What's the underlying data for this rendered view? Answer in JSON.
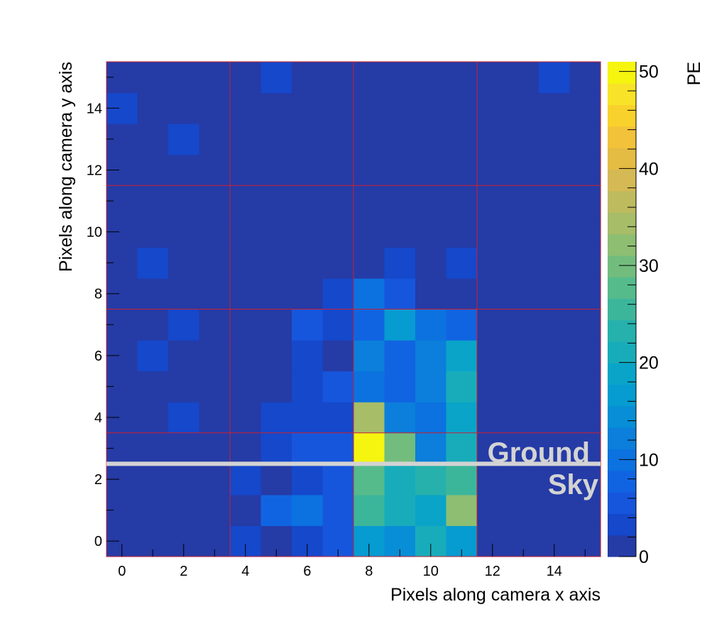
{
  "chart_data": {
    "type": "heatmap",
    "title": "",
    "xlabel": "Pixels along camera x axis",
    "ylabel": "Pixels along camera y axis",
    "colorbar_label": "PE",
    "xlim": [
      -0.5,
      15.5
    ],
    "ylim": [
      -0.5,
      15.5
    ],
    "zlim": [
      0,
      51
    ],
    "x_ticks": [
      0,
      2,
      4,
      6,
      8,
      10,
      12,
      14
    ],
    "y_ticks": [
      0,
      2,
      4,
      6,
      8,
      10,
      12,
      14
    ],
    "z_ticks": [
      0,
      10,
      20,
      30,
      40,
      50
    ],
    "module_grid_size": 4,
    "horizon_y": 2.5,
    "annotations": [
      "Ground",
      "Sky"
    ],
    "values": [
      [
        0,
        0,
        0,
        0,
        3,
        0,
        3,
        5,
        17,
        14,
        22,
        17,
        0,
        0,
        0,
        0
      ],
      [
        0,
        0,
        0,
        0,
        0,
        7,
        11,
        6,
        25,
        20,
        19,
        32,
        0,
        0,
        0,
        0
      ],
      [
        0,
        0,
        0,
        0,
        3,
        0,
        3,
        6,
        28,
        22,
        23,
        25,
        0,
        0,
        0,
        0
      ],
      [
        0,
        0,
        0,
        0,
        0,
        3,
        6,
        6,
        51,
        31,
        13,
        21,
        0,
        0,
        0,
        0
      ],
      [
        0,
        0,
        3,
        0,
        0,
        3,
        3,
        3,
        35,
        12,
        10,
        18,
        0,
        0,
        0,
        0
      ],
      [
        0,
        0,
        0,
        0,
        0,
        0,
        3,
        6,
        9,
        8,
        13,
        21,
        0,
        0,
        0,
        0
      ],
      [
        0,
        3,
        0,
        0,
        0,
        0,
        3,
        0,
        12,
        8,
        13,
        19,
        0,
        0,
        0,
        0
      ],
      [
        0,
        0,
        3,
        0,
        0,
        0,
        6,
        3,
        8,
        16,
        11,
        8,
        0,
        0,
        0,
        0
      ],
      [
        0,
        0,
        0,
        0,
        0,
        0,
        0,
        3,
        9,
        6,
        0,
        0,
        0,
        0,
        0,
        0
      ],
      [
        0,
        3,
        0,
        0,
        0,
        0,
        0,
        0,
        0,
        3,
        0,
        3,
        0,
        0,
        0,
        0
      ],
      [
        0,
        0,
        0,
        0,
        0,
        0,
        0,
        0,
        0,
        0,
        0,
        0,
        0,
        0,
        0,
        0
      ],
      [
        0,
        0,
        0,
        0,
        0,
        0,
        0,
        0,
        0,
        0,
        0,
        0,
        0,
        0,
        0,
        0
      ],
      [
        0,
        0,
        0,
        0,
        0,
        0,
        0,
        0,
        0,
        0,
        0,
        0,
        0,
        0,
        0,
        0
      ],
      [
        0,
        0,
        3,
        0,
        0,
        0,
        0,
        0,
        0,
        0,
        0,
        0,
        0,
        0,
        0,
        0
      ],
      [
        3,
        0,
        0,
        0,
        0,
        0,
        0,
        0,
        0,
        0,
        0,
        0,
        0,
        0,
        0,
        0
      ],
      [
        0,
        0,
        0,
        0,
        0,
        3,
        0,
        0,
        0,
        0,
        0,
        0,
        0,
        0,
        3,
        0
      ]
    ],
    "palette": [
      "#253ba6",
      "#1548cb",
      "#1656dc",
      "#1164e1",
      "#0b72df",
      "#0b7fdb",
      "#088ed6",
      "#069bd1",
      "#0aa4c9",
      "#18acbb",
      "#26b1ac",
      "#3cb69b",
      "#55bb8b",
      "#72bd7e",
      "#8ebe71",
      "#a7bd68",
      "#bebb5f",
      "#d4b955",
      "#e4bb43",
      "#f2c23a",
      "#f9d12c",
      "#f8e328",
      "#f5f510"
    ],
    "grid_color": "#cc2030",
    "horizon_color": "#d3d3d3"
  }
}
